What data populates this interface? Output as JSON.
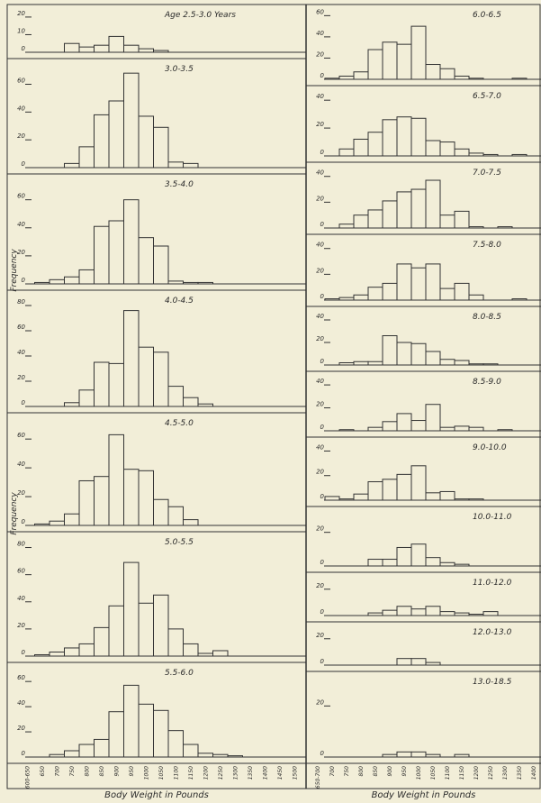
{
  "chart_data": [
    {
      "type": "histogram",
      "xlabel": "Body Weight in Pounds",
      "ylabel": "Frequency",
      "categories": [
        "600-650",
        "650",
        "700",
        "750",
        "800",
        "850",
        "900",
        "950",
        "1000",
        "1050",
        "1100",
        "1150",
        "1200",
        "1250",
        "1300",
        "1350",
        "1400",
        "1450",
        "1500"
      ],
      "panels": [
        {
          "title": "Age 2.5-3.0 Years",
          "ylim": [
            0,
            22
          ],
          "yticks": [
            0,
            10,
            20
          ],
          "values": [
            0,
            0,
            0,
            5,
            3,
            4,
            9,
            4,
            2,
            1,
            0,
            0,
            0,
            0,
            0,
            0,
            0,
            0,
            0
          ]
        },
        {
          "title": "3.0-3.5",
          "ylim": [
            0,
            72
          ],
          "yticks": [
            0,
            20,
            40,
            60
          ],
          "values": [
            0,
            0,
            0,
            3,
            15,
            38,
            48,
            68,
            37,
            29,
            4,
            3,
            0,
            0,
            0,
            0,
            0,
            0,
            0
          ]
        },
        {
          "title": "3.5-4.0",
          "ylim": [
            0,
            72
          ],
          "yticks": [
            0,
            20,
            40,
            60
          ],
          "values": [
            0,
            1,
            3,
            5,
            10,
            41,
            45,
            60,
            33,
            27,
            2,
            1,
            1,
            0,
            0,
            0,
            0,
            0,
            0
          ]
        },
        {
          "title": "4.0-4.5",
          "ylim": [
            0,
            85
          ],
          "yticks": [
            0,
            20,
            40,
            60,
            80
          ],
          "values": [
            0,
            0,
            0,
            3,
            13,
            35,
            34,
            76,
            47,
            43,
            16,
            7,
            2,
            0,
            0,
            0,
            0,
            0,
            0
          ]
        },
        {
          "title": "4.5-5.0",
          "ylim": [
            0,
            72
          ],
          "yticks": [
            0,
            20,
            40,
            60
          ],
          "values": [
            0,
            1,
            3,
            8,
            31,
            34,
            63,
            39,
            38,
            18,
            13,
            4,
            0,
            0,
            0,
            0,
            0,
            0,
            0
          ]
        },
        {
          "title": "5.0-5.5",
          "ylim": [
            0,
            85
          ],
          "yticks": [
            0,
            20,
            40,
            60,
            80
          ],
          "values": [
            0,
            1,
            3,
            6,
            9,
            21,
            37,
            69,
            39,
            45,
            20,
            9,
            2,
            4,
            0,
            0,
            0,
            0,
            0
          ]
        },
        {
          "title": "5.5-6.0",
          "ylim": [
            0,
            68
          ],
          "yticks": [
            0,
            20,
            40,
            60
          ],
          "values": [
            0,
            0,
            2,
            5,
            10,
            14,
            36,
            57,
            42,
            37,
            21,
            10,
            3,
            2,
            1,
            0,
            0,
            0,
            0
          ]
        }
      ]
    },
    {
      "type": "histogram",
      "xlabel": "Body Weight in Pounds",
      "categories": [
        "650-700",
        "700",
        "750",
        "800",
        "850",
        "900",
        "950",
        "1000",
        "1050",
        "1100",
        "1150",
        "1200",
        "1250",
        "1300",
        "1350",
        "1400"
      ],
      "panels": [
        {
          "title": "6.0-6.5",
          "ylim": [
            0,
            62
          ],
          "yticks": [
            0,
            20,
            40,
            60
          ],
          "values": [
            0,
            1,
            3,
            7,
            28,
            35,
            33,
            50,
            14,
            10,
            3,
            1,
            0,
            0,
            1,
            0
          ]
        },
        {
          "title": "6.5-7.0",
          "ylim": [
            0,
            44
          ],
          "yticks": [
            0,
            20,
            40
          ],
          "values": [
            0,
            0,
            5,
            12,
            17,
            26,
            28,
            27,
            11,
            10,
            5,
            2,
            1,
            0,
            1,
            0
          ]
        },
        {
          "title": "7.0-7.5",
          "ylim": [
            0,
            44
          ],
          "yticks": [
            0,
            20,
            40
          ],
          "values": [
            0,
            0,
            3,
            10,
            14,
            21,
            28,
            30,
            37,
            10,
            13,
            1,
            0,
            1,
            0,
            0
          ]
        },
        {
          "title": "7.5-8.0",
          "ylim": [
            0,
            44
          ],
          "yticks": [
            0,
            20,
            40
          ],
          "values": [
            0,
            1,
            2,
            4,
            10,
            13,
            28,
            25,
            28,
            9,
            13,
            4,
            0,
            0,
            1,
            0
          ]
        },
        {
          "title": "8.0-8.5",
          "ylim": [
            0,
            44
          ],
          "yticks": [
            0,
            20,
            40
          ],
          "values": [
            0,
            0,
            2,
            3,
            3,
            26,
            20,
            19,
            12,
            5,
            4,
            1,
            1,
            0,
            0,
            0
          ]
        },
        {
          "title": "8.5-9.0",
          "ylim": [
            0,
            44
          ],
          "yticks": [
            0,
            20,
            40
          ],
          "values": [
            0,
            0,
            1,
            0,
            3,
            8,
            15,
            9,
            23,
            3,
            4,
            3,
            0,
            1,
            0,
            0
          ]
        },
        {
          "title": "9.0-10.0",
          "ylim": [
            0,
            44
          ],
          "yticks": [
            0,
            20,
            40
          ],
          "values": [
            0,
            3,
            1,
            5,
            15,
            17,
            21,
            28,
            6,
            7,
            1,
            1,
            0,
            0,
            0,
            0
          ]
        },
        {
          "title": "10.0-11.0",
          "ylim": [
            0,
            30
          ],
          "yticks": [
            0,
            20
          ],
          "values": [
            0,
            0,
            0,
            0,
            4,
            4,
            11,
            13,
            5,
            2,
            1,
            0,
            0,
            0,
            0,
            0
          ]
        },
        {
          "title": "11.0-12.0",
          "ylim": [
            0,
            26
          ],
          "yticks": [
            0,
            20
          ],
          "values": [
            0,
            0,
            0,
            0,
            2,
            4,
            7,
            5,
            7,
            3,
            2,
            1,
            3,
            0,
            0,
            0
          ]
        },
        {
          "title": "12.0-13.0",
          "ylim": [
            0,
            26
          ],
          "yticks": [
            0,
            20
          ],
          "values": [
            0,
            0,
            0,
            0,
            0,
            0,
            5,
            5,
            2,
            0,
            0,
            0,
            0,
            0,
            0,
            0
          ]
        },
        {
          "title": "13.0-18.5",
          "ylim": [
            0,
            30
          ],
          "yticks": [
            0,
            20
          ],
          "values": [
            0,
            0,
            0,
            0,
            0,
            1,
            2,
            2,
            1,
            0,
            1,
            0,
            0,
            0,
            0,
            0
          ]
        }
      ]
    }
  ]
}
